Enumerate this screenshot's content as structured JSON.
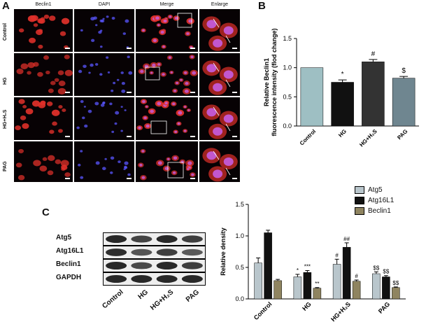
{
  "panels": {
    "a": "A",
    "b": "B",
    "c": "C"
  },
  "micrograph": {
    "columns": [
      "Beclin1",
      "DAPI",
      "Merge",
      "Enlarge"
    ],
    "rows": [
      "Control",
      "HG",
      "HG+H₂S",
      "PAG"
    ],
    "colors": {
      "red": "#e0302a",
      "blue": "#5a55ff",
      "magenta": "#c45bd8",
      "box": "#ffffff"
    }
  },
  "chart_b": {
    "chart_data": {
      "type": "bar",
      "categories": [
        "Control",
        "HG",
        "HG+H₂S",
        "PAG"
      ],
      "values": [
        1.0,
        0.75,
        1.1,
        0.82
      ],
      "errors": [
        0.0,
        0.04,
        0.04,
        0.03
      ],
      "significance": [
        "",
        "*",
        "#",
        "$"
      ],
      "colors": [
        "#9ebfc3",
        "#111111",
        "#333333",
        "#6f8690"
      ],
      "ylabel": "Relative Beclin1\nfluorescence intensity (flod change)",
      "ylim": [
        0,
        1.5
      ],
      "yticks": [
        "0.0",
        "0.5",
        "1.0",
        "1.5"
      ]
    }
  },
  "chart_c": {
    "chart_data": {
      "type": "bar",
      "categories": [
        "Control",
        "HG",
        "HG+H₂S",
        "PAG"
      ],
      "series": [
        {
          "name": "Atg5",
          "values": [
            0.57,
            0.35,
            0.55,
            0.4
          ],
          "errors": [
            0.08,
            0.04,
            0.08,
            0.03
          ],
          "marks": [
            "",
            "*",
            "#",
            "$$"
          ],
          "color": "#b9c6cc"
        },
        {
          "name": "Atg16L1",
          "values": [
            1.05,
            0.42,
            0.82,
            0.35
          ],
          "errors": [
            0.04,
            0.03,
            0.07,
            0.02
          ],
          "marks": [
            "",
            "***",
            "##",
            "$$"
          ],
          "color": "#111111"
        },
        {
          "name": "Beclin1",
          "values": [
            0.29,
            0.17,
            0.28,
            0.18
          ],
          "errors": [
            0.02,
            0.01,
            0.02,
            0.01
          ],
          "marks": [
            "",
            "**",
            "#",
            "$$"
          ],
          "color": "#8f8460"
        }
      ],
      "ylabel": "Relative density",
      "ylim": [
        0,
        1.5
      ],
      "yticks": [
        "0.0",
        "0.5",
        "1.0",
        "1.5"
      ]
    }
  },
  "western_blot": {
    "proteins": [
      "Atg5",
      "Atg16L1",
      "Beclin1",
      "GAPDH"
    ],
    "lanes": [
      "Control",
      "HG",
      "HG+H₂S",
      "PAG"
    ]
  }
}
